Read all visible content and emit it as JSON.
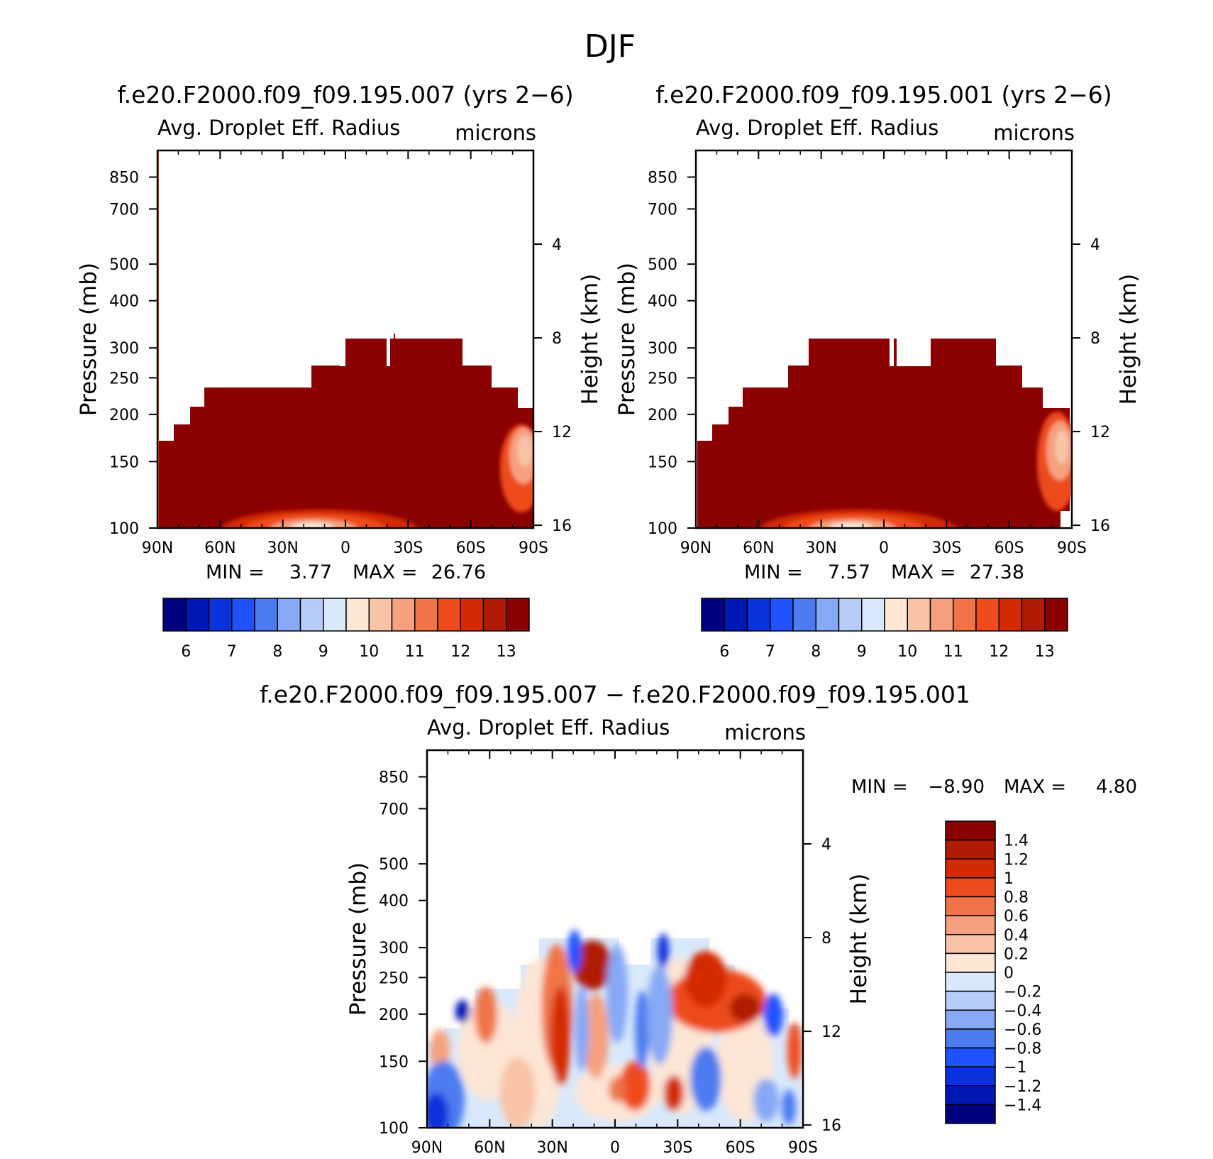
{
  "page": {
    "title": "DJF"
  },
  "colors": {
    "panel_palette": [
      "#000080",
      "#0018b4",
      "#0a32dc",
      "#2052ff",
      "#4d7cf0",
      "#86a8f5",
      "#b6ccf7",
      "#d9e9fb",
      "#fde6d6",
      "#f8c3a6",
      "#f5a07e",
      "#f07448",
      "#ee4b1e",
      "#d42a06",
      "#b01b06",
      "#8b0000"
    ],
    "diff_palette": [
      "#000080",
      "#0018b4",
      "#0a32dc",
      "#2052ff",
      "#4d7cf0",
      "#86a8f5",
      "#b6ccf7",
      "#d9e9fb",
      "#fde6d6",
      "#f8c3a6",
      "#f5a07e",
      "#f07448",
      "#ee4b1e",
      "#d42a06",
      "#b01b06",
      "#8b0000"
    ]
  },
  "chart_data": [
    {
      "type": "heatmap",
      "id": "panel-a",
      "title": "f.e20.F2000.f09_f09.195.007 (yrs 2−6)",
      "left_subtitle": "Avg. Droplet Eff. Radius",
      "right_subtitle": "microns",
      "ylabel": "Pressure (mb)",
      "ylabel_right": "Height (km)",
      "x_ticks": [
        "90N",
        "60N",
        "30N",
        "0",
        "30S",
        "60S",
        "90S"
      ],
      "y_ticks": [
        "100",
        "150",
        "200",
        "250",
        "300",
        "400",
        "500",
        "700",
        "850"
      ],
      "y_ticks_right": [
        "16",
        "12",
        "8",
        "4"
      ],
      "xlim": [
        90,
        -90
      ],
      "ylim_mb": [
        1000,
        100
      ],
      "min_label": "MIN =",
      "min_value": "3.77",
      "max_label": "MAX =",
      "max_value": "26.76",
      "colorbar_labels": [
        "6",
        "7",
        "8",
        "9",
        "10",
        "11",
        "12",
        "13"
      ]
    },
    {
      "type": "heatmap",
      "id": "panel-b",
      "title": "f.e20.F2000.f09_f09.195.001 (yrs 2−6)",
      "left_subtitle": "Avg. Droplet Eff. Radius",
      "right_subtitle": "microns",
      "ylabel": "Pressure (mb)",
      "ylabel_right": "Height (km)",
      "x_ticks": [
        "90N",
        "60N",
        "30N",
        "0",
        "30S",
        "60S",
        "90S"
      ],
      "y_ticks": [
        "100",
        "150",
        "200",
        "250",
        "300",
        "400",
        "500",
        "700",
        "850"
      ],
      "y_ticks_right": [
        "16",
        "12",
        "8",
        "4"
      ],
      "xlim": [
        90,
        -90
      ],
      "ylim_mb": [
        1000,
        100
      ],
      "min_label": "MIN =",
      "min_value": "7.57",
      "max_label": "MAX =",
      "max_value": "27.38",
      "colorbar_labels": [
        "6",
        "7",
        "8",
        "9",
        "10",
        "11",
        "12",
        "13"
      ]
    },
    {
      "type": "heatmap",
      "id": "panel-diff",
      "title": "f.e20.F2000.f09_f09.195.007 − f.e20.F2000.f09_f09.195.001",
      "left_subtitle": "Avg. Droplet Eff. Radius",
      "right_subtitle": "microns",
      "ylabel": "Pressure (mb)",
      "ylabel_right": "Height (km)",
      "x_ticks": [
        "90N",
        "60N",
        "30N",
        "0",
        "30S",
        "60S",
        "90S"
      ],
      "y_ticks": [
        "100",
        "150",
        "200",
        "250",
        "300",
        "400",
        "500",
        "700",
        "850"
      ],
      "y_ticks_right": [
        "16",
        "12",
        "8",
        "4"
      ],
      "xlim": [
        90,
        -90
      ],
      "ylim_mb": [
        1000,
        100
      ],
      "min_label": "MIN =",
      "min_value": "−8.90",
      "max_label": "MAX =",
      "max_value": "4.80",
      "colorbar_labels": [
        "1.4",
        "1.2",
        "1",
        "0.8",
        "0.6",
        "0.4",
        "0.2",
        "0",
        "−0.2",
        "−0.4",
        "−0.6",
        "−0.8",
        "−1",
        "−1.2",
        "−1.4"
      ]
    }
  ]
}
